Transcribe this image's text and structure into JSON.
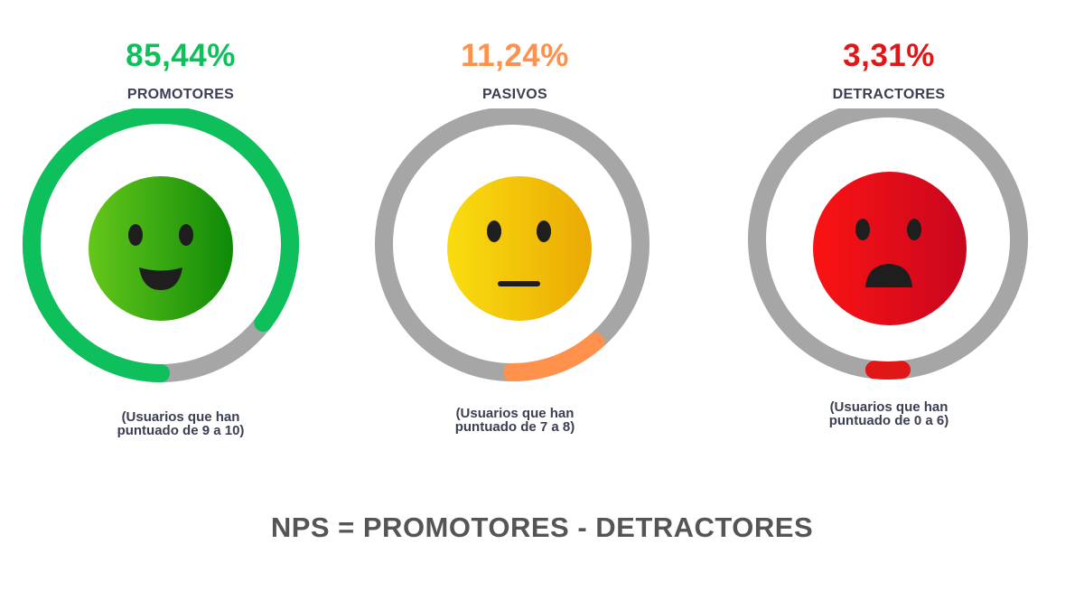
{
  "chart_data": [
    {
      "type": "gauge",
      "value_label": "85,44%",
      "value": 85.44,
      "label": "PROMOTORES",
      "note": [
        "(Usuarios que han",
        "puntuado de 9 a 10)"
      ],
      "color": "#0ec05b",
      "face": "happy-face-icon",
      "face_colors": [
        "#64c71a",
        "#0e8a08"
      ]
    },
    {
      "type": "gauge",
      "value_label": "11,24%",
      "value": 11.24,
      "label": "PASIVOS",
      "note": [
        "(Usuarios que han",
        "puntuado de 7 a  8)"
      ],
      "color": "#ff914d",
      "face": "neutral-face-icon",
      "face_colors": [
        "#f9dd0f",
        "#eba904"
      ]
    },
    {
      "type": "gauge",
      "value_label": "3,31%",
      "value": 3.31,
      "label": "DETRACTORES",
      "note": [
        "(Usuarios que han",
        "puntuado de 0 a 6)"
      ],
      "color": "#e11616",
      "face": "sad-face-icon",
      "face_colors": [
        "#fb1313",
        "#c9061f"
      ]
    }
  ],
  "track_color": "#a6a6a6",
  "formula": "NPS = PROMOTORES - DETRACTORES"
}
